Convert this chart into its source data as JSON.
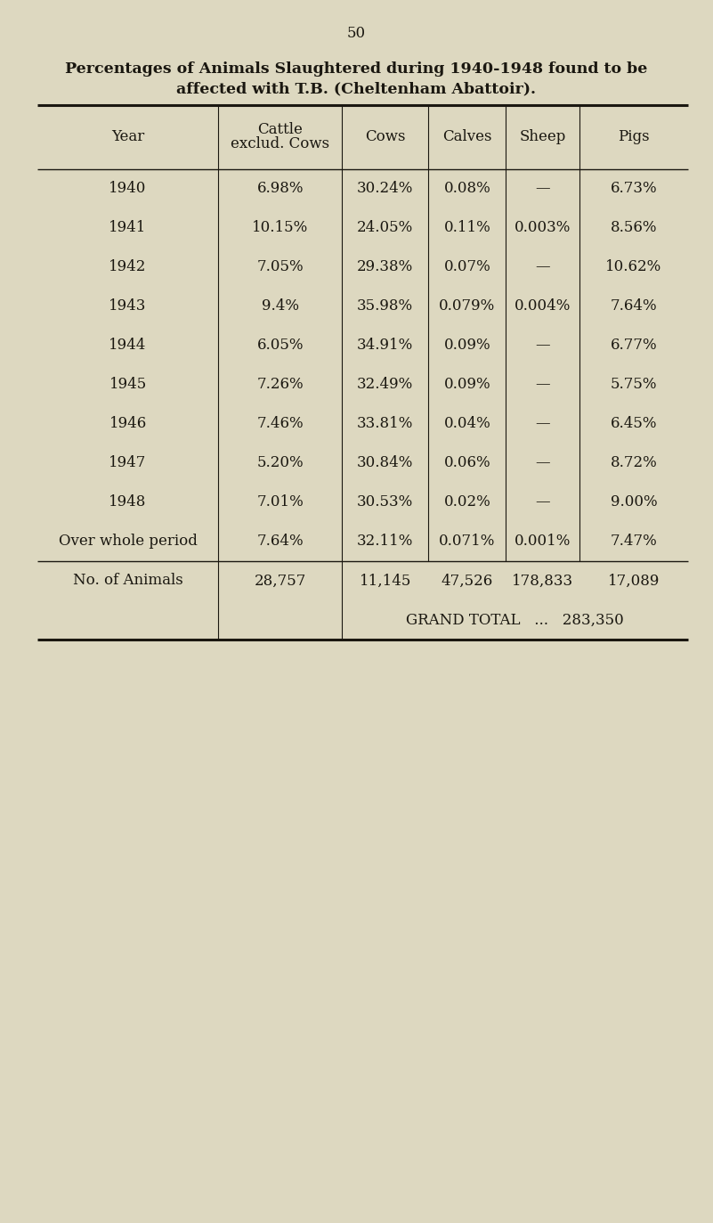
{
  "title_line1": "Percentages of Animals Slaughtered during 1940-1948 found to be",
  "title_line2": "affected with T.B. (Cheltenham Abattoir).",
  "page_number": "50",
  "col_headers_line1": [
    "Year",
    "Cattle",
    "Cows",
    "Calves",
    "Sheep",
    "Pigs"
  ],
  "col_headers_line2": [
    "",
    "exclud. Cows",
    "",
    "",
    "",
    ""
  ],
  "rows": [
    [
      "1940",
      "6.98%",
      "30.24%",
      "0.08%",
      "—",
      "6.73%"
    ],
    [
      "1941",
      "10.15%",
      "24.05%",
      "0.11%",
      "0.003%",
      "8.56%"
    ],
    [
      "1942",
      "7.05%",
      "29.38%",
      "0.07%",
      "—",
      "10.62%"
    ],
    [
      "1943",
      "9.4%",
      "35.98%",
      "0.079%",
      "0.004%",
      "7.64%"
    ],
    [
      "1944",
      "6.05%",
      "34.91%",
      "0.09%",
      "—",
      "6.77%"
    ],
    [
      "1945",
      "7.26%",
      "32.49%",
      "0.09%",
      "—",
      "5.75%"
    ],
    [
      "1946",
      "7.46%",
      "33.81%",
      "0.04%",
      "—",
      "6.45%"
    ],
    [
      "1947",
      "5.20%",
      "30.84%",
      "0.06%",
      "—",
      "8.72%"
    ],
    [
      "1948",
      "7.01%",
      "30.53%",
      "0.02%",
      "—",
      "9.00%"
    ],
    [
      "Over whole period",
      "7.64%",
      "32.11%",
      "0.071%",
      "0.001%",
      "7.47%"
    ]
  ],
  "footer_row1_label": "No. of Animals",
  "footer_row1_values": [
    "28,757",
    "11,145",
    "47,526",
    "178,833",
    "17,089"
  ],
  "footer_row2_text": "GRAND TOTAL   ...   283,350",
  "background_color": "#ddd8c0",
  "text_color": "#1a1710",
  "title_fontsize": 12.5,
  "header_fontsize": 12,
  "body_fontsize": 12,
  "footer_fontsize": 12,
  "page_num_fontsize": 12
}
